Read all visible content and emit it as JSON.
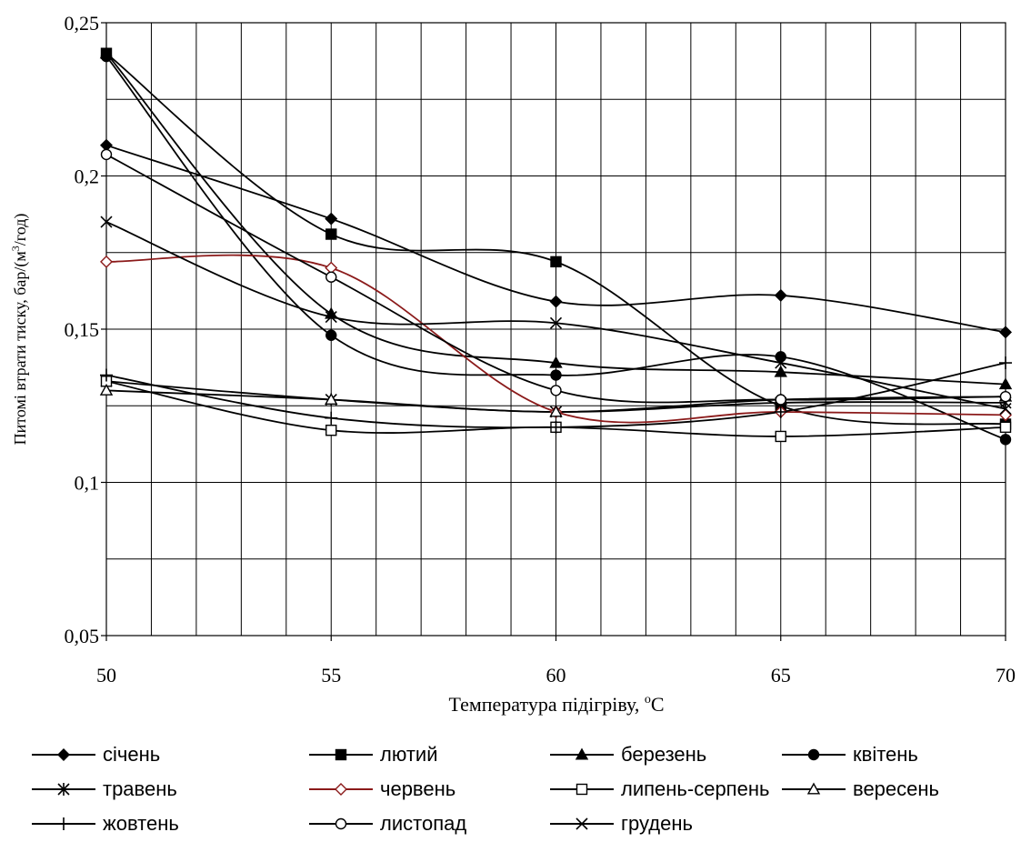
{
  "chart_data": {
    "type": "line",
    "title": "",
    "xlabel": "Температура підігріву, ",
    "xlabel_unit": "С",
    "xlabel_superscript": "o",
    "ylabel": "Питомі  втрати тиску, бар/(м",
    "ylabel_superscript": "3",
    "ylabel_suffix": "/год)",
    "xlim": [
      50,
      70
    ],
    "ylim": [
      0.05,
      0.25
    ],
    "x": [
      50,
      55,
      60,
      65,
      70
    ],
    "x_tick_labels": [
      "50",
      "55",
      "60",
      "65",
      "70"
    ],
    "y_ticks": [
      0.05,
      0.1,
      0.15,
      0.2,
      0.25
    ],
    "y_tick_labels": [
      "0,05",
      "0,1",
      "0,15",
      "0,2",
      "0,25"
    ],
    "grid": true,
    "legend_position": "bottom",
    "series": [
      {
        "name": "січень",
        "marker": "diamond-filled",
        "color": "#000000",
        "values": [
          0.21,
          0.186,
          0.159,
          0.161,
          0.149
        ]
      },
      {
        "name": "лютий",
        "marker": "square-filled",
        "color": "#000000",
        "values": [
          0.24,
          0.181,
          0.172,
          0.125,
          0.119
        ]
      },
      {
        "name": "березень",
        "marker": "triangle-filled",
        "color": "#000000",
        "values": [
          0.24,
          0.155,
          0.139,
          0.136,
          0.132
        ]
      },
      {
        "name": "квітень",
        "marker": "circle-filled",
        "color": "#000000",
        "values": [
          0.239,
          0.148,
          0.135,
          0.141,
          0.114
        ]
      },
      {
        "name": "травень",
        "marker": "asterisk",
        "color": "#000000",
        "values": [
          0.133,
          0.127,
          0.123,
          0.126,
          0.126
        ]
      },
      {
        "name": "червень",
        "marker": "diamond-open",
        "color": "#8B1A1A",
        "values": [
          0.172,
          0.17,
          0.123,
          0.123,
          0.122
        ]
      },
      {
        "name": "липень-серпень",
        "marker": "square-open",
        "color": "#000000",
        "values": [
          0.133,
          0.117,
          0.118,
          0.115,
          0.118
        ]
      },
      {
        "name": "вересень",
        "marker": "triangle-open",
        "color": "#000000",
        "values": [
          0.13,
          0.127,
          0.123,
          0.127,
          0.128
        ]
      },
      {
        "name": "жовтень",
        "marker": "plus",
        "color": "#000000",
        "values": [
          0.135,
          0.121,
          0.118,
          0.123,
          0.139
        ]
      },
      {
        "name": "листопад",
        "marker": "circle-open",
        "color": "#000000",
        "values": [
          0.207,
          0.167,
          0.13,
          0.127,
          0.128
        ]
      },
      {
        "name": "грудень",
        "marker": "cross",
        "color": "#000000",
        "values": [
          0.185,
          0.154,
          0.152,
          0.139,
          0.124
        ]
      }
    ]
  }
}
